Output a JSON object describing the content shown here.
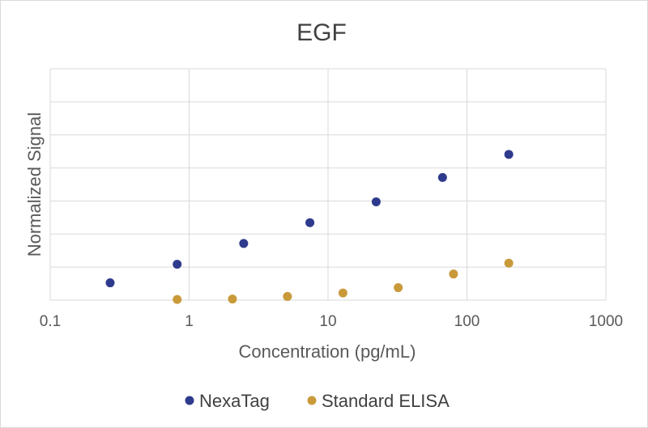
{
  "chart_data": {
    "type": "scatter",
    "title": "EGF",
    "xlabel": "Concentration (pg/mL)",
    "ylabel": "Normalized Signal",
    "x_scale": "log",
    "xlim": [
      0.1,
      1000
    ],
    "ylim": [
      0,
      1
    ],
    "x_ticks": [
      "0.1",
      "1",
      "10",
      "100",
      "1000"
    ],
    "grid": true,
    "legend_position": "bottom",
    "series": [
      {
        "name": "NexaTag",
        "color": "#2e3a8c",
        "x": [
          0.27,
          0.82,
          2.47,
          7.4,
          22.2,
          66.7,
          200
        ],
        "y": [
          0.075,
          0.155,
          0.245,
          0.335,
          0.425,
          0.53,
          0.63
        ]
      },
      {
        "name": "Standard ELISA",
        "color": "#c99a3a",
        "x": [
          0.82,
          2.05,
          5.1,
          12.8,
          32,
          80,
          200
        ],
        "y": [
          0.003,
          0.005,
          0.016,
          0.031,
          0.054,
          0.113,
          0.16
        ]
      }
    ]
  }
}
